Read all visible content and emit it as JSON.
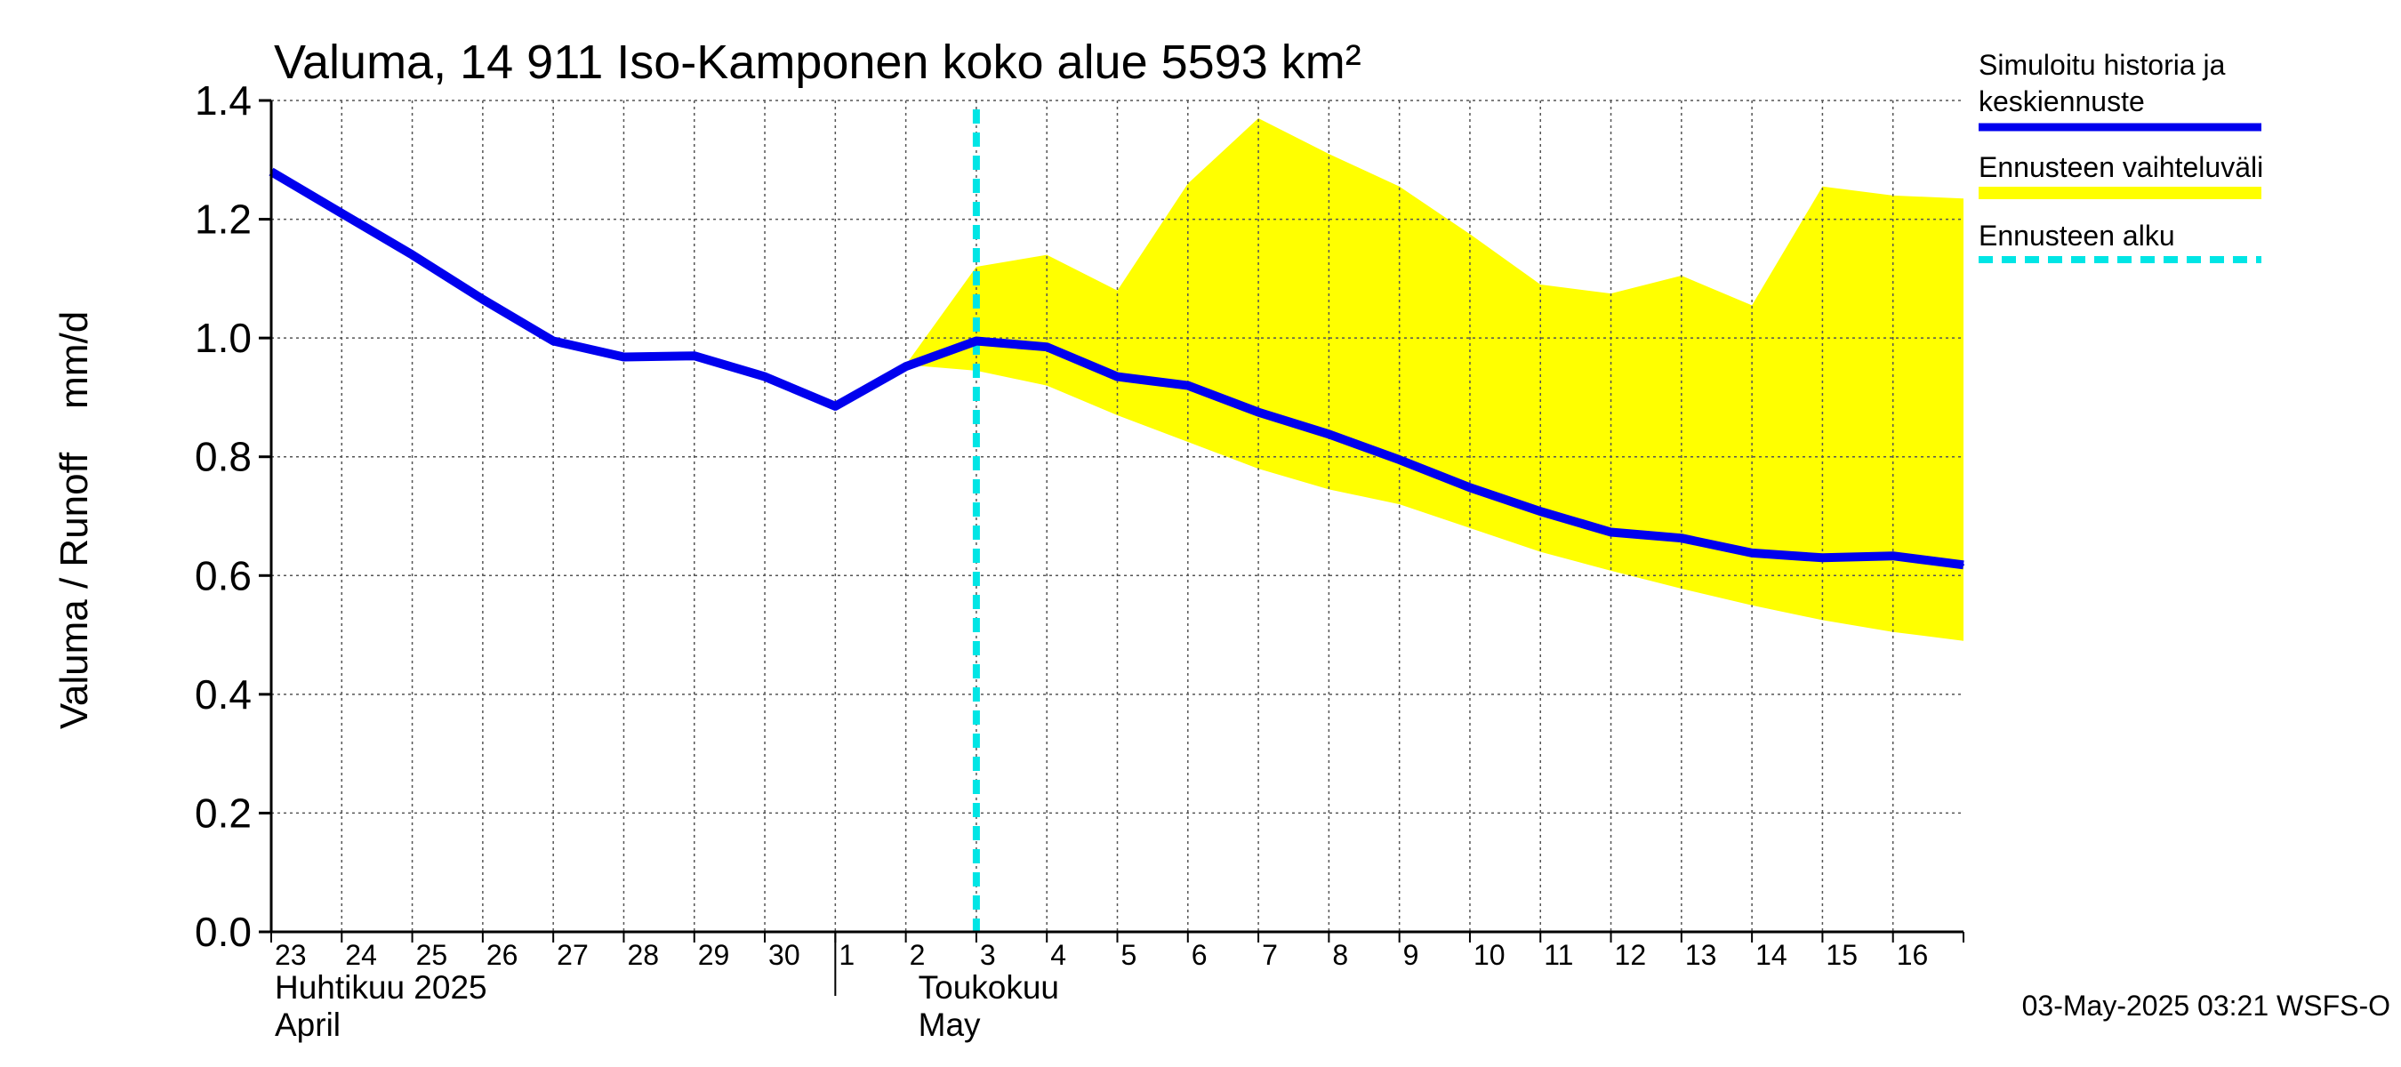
{
  "chart_data": {
    "type": "line",
    "title": "Valuma, 14 911 Iso-Kamponen koko alue 5593 km²",
    "ylabel": "Valuma / Runoff    mm/d",
    "ylim": [
      0.0,
      1.4
    ],
    "yticks": [
      "0.0",
      "0.2",
      "0.4",
      "0.6",
      "0.8",
      "1.0",
      "1.2",
      "1.4"
    ],
    "grid": true,
    "x_day_labels": [
      "23",
      "24",
      "25",
      "26",
      "27",
      "28",
      "29",
      "30",
      "1",
      "2",
      "3",
      "4",
      "5",
      "6",
      "7",
      "8",
      "9",
      "10",
      "11",
      "12",
      "13",
      "14",
      "15",
      "16"
    ],
    "month_labels": [
      {
        "line1": "Huhtikuu  2025",
        "line2": "April"
      },
      {
        "line1": "Toukokuu",
        "line2": "May"
      }
    ],
    "forecast_start": "2025-05-03",
    "series": [
      {
        "name": "Simuloitu historia ja keskiennuste",
        "color": "#0000ee",
        "points": [
          [
            "2025-04-23",
            1.28
          ],
          [
            "2025-04-24",
            1.21
          ],
          [
            "2025-04-25",
            1.14
          ],
          [
            "2025-04-26",
            1.065
          ],
          [
            "2025-04-27",
            0.995
          ],
          [
            "2025-04-28",
            0.968
          ],
          [
            "2025-04-29",
            0.97
          ],
          [
            "2025-04-30",
            0.935
          ],
          [
            "2025-05-01",
            0.885
          ],
          [
            "2025-05-02",
            0.952
          ],
          [
            "2025-05-03",
            0.995
          ],
          [
            "2025-05-04",
            0.985
          ],
          [
            "2025-05-05",
            0.935
          ],
          [
            "2025-05-06",
            0.92
          ],
          [
            "2025-05-07",
            0.875
          ],
          [
            "2025-05-08",
            0.838
          ],
          [
            "2025-05-09",
            0.795
          ],
          [
            "2025-05-10",
            0.748
          ],
          [
            "2025-05-11",
            0.708
          ],
          [
            "2025-05-12",
            0.673
          ],
          [
            "2025-05-13",
            0.663
          ],
          [
            "2025-05-14",
            0.638
          ],
          [
            "2025-05-15",
            0.63
          ],
          [
            "2025-05-16",
            0.633
          ],
          [
            "2025-05-17",
            0.618
          ]
        ]
      }
    ],
    "band": {
      "name": "Ennusteen vaihteluväli",
      "color": "#ffff00",
      "points": [
        [
          "2025-05-02",
          0.955,
          0.955
        ],
        [
          "2025-05-03",
          0.945,
          1.12
        ],
        [
          "2025-05-04",
          0.92,
          1.14
        ],
        [
          "2025-05-05",
          0.87,
          1.08
        ],
        [
          "2025-05-06",
          0.825,
          1.26
        ],
        [
          "2025-05-07",
          0.78,
          1.37
        ],
        [
          "2025-05-08",
          0.745,
          1.31
        ],
        [
          "2025-05-09",
          0.72,
          1.255
        ],
        [
          "2025-05-10",
          0.68,
          1.175
        ],
        [
          "2025-05-11",
          0.64,
          1.09
        ],
        [
          "2025-05-12",
          0.608,
          1.075
        ],
        [
          "2025-05-13",
          0.578,
          1.105
        ],
        [
          "2025-05-14",
          0.55,
          1.055
        ],
        [
          "2025-05-15",
          0.525,
          1.255
        ],
        [
          "2025-05-16",
          0.505,
          1.24
        ],
        [
          "2025-05-17",
          0.49,
          1.235
        ]
      ]
    },
    "legend": [
      {
        "label": "Simuloitu historia ja keskiennuste",
        "color": "#0000ee",
        "style": "solid"
      },
      {
        "label": "Ennusteen vaihteluväli",
        "color": "#ffff00",
        "style": "solid"
      },
      {
        "label": "Ennusteen alku",
        "color": "#00e5e5",
        "style": "dashed"
      }
    ],
    "legend_position": "right",
    "footer": "03-May-2025 03:21 WSFS-O"
  }
}
